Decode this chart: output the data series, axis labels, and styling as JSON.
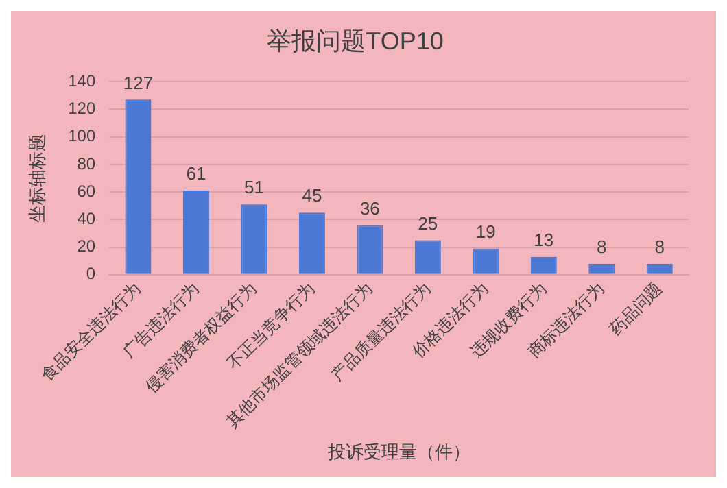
{
  "chart_data": {
    "type": "bar",
    "title": "举报问题TOP10",
    "xlabel": "投诉受理量（件）",
    "ylabel": "坐标轴标题",
    "categories": [
      "食品安全违法行为",
      "广告违法行为",
      "侵害消费者权益行为",
      "不正当竞争行为",
      "其他市场监管领域违法行为",
      "产品质量违法行为",
      "价格违法行为",
      "违规收费行为",
      "商标违法行为",
      "药品问题"
    ],
    "values": [
      127,
      61,
      51,
      45,
      36,
      25,
      19,
      13,
      8,
      8
    ],
    "color": "#4a78d4",
    "ylim": [
      0,
      140
    ],
    "yticks": [
      0,
      20,
      40,
      60,
      80,
      100,
      120,
      140
    ],
    "grid": "y",
    "data_labels": true
  }
}
